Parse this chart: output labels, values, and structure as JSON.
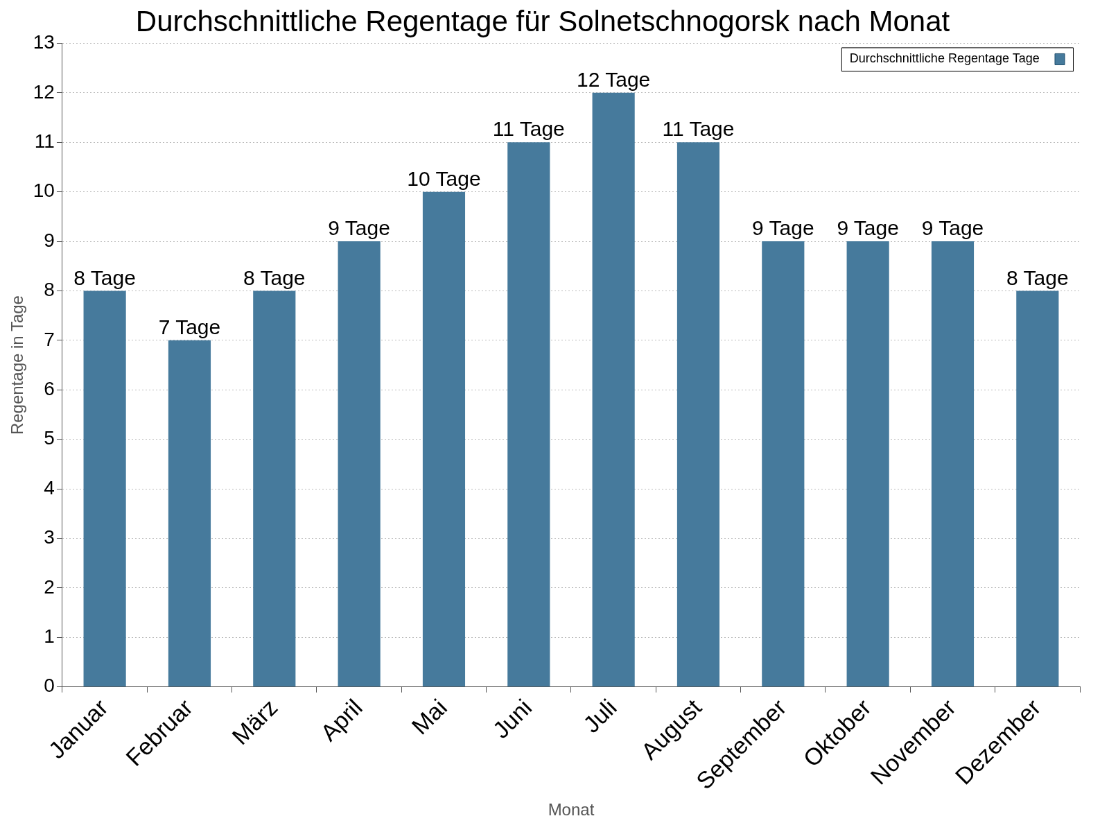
{
  "chart_data": {
    "type": "bar",
    "title": "Durchschnittliche Regentage für Solnetschnogorsk nach Monat",
    "xlabel": "Monat",
    "ylabel": "Regentage in Tage",
    "categories": [
      "Januar",
      "Februar",
      "März",
      "April",
      "Mai",
      "Juni",
      "Juli",
      "August",
      "September",
      "Oktober",
      "November",
      "Dezember"
    ],
    "series": [
      {
        "name": "Durchschnittliche Regentage Tage",
        "color": "#467a9c",
        "values": [
          8,
          7,
          8,
          9,
          10,
          11,
          12,
          11,
          9,
          9,
          9,
          8
        ],
        "value_labels": [
          "8 Tage",
          "7 Tage",
          "8 Tage",
          "9 Tage",
          "10 Tage",
          "11 Tage",
          "12 Tage",
          "11 Tage",
          "9 Tage",
          "9 Tage",
          "9 Tage",
          "8 Tage"
        ]
      }
    ],
    "ylim": [
      0,
      13
    ],
    "yticks": [
      0,
      1,
      2,
      3,
      4,
      5,
      6,
      7,
      8,
      9,
      10,
      11,
      12,
      13
    ],
    "grid": "y",
    "legend": "top right"
  }
}
